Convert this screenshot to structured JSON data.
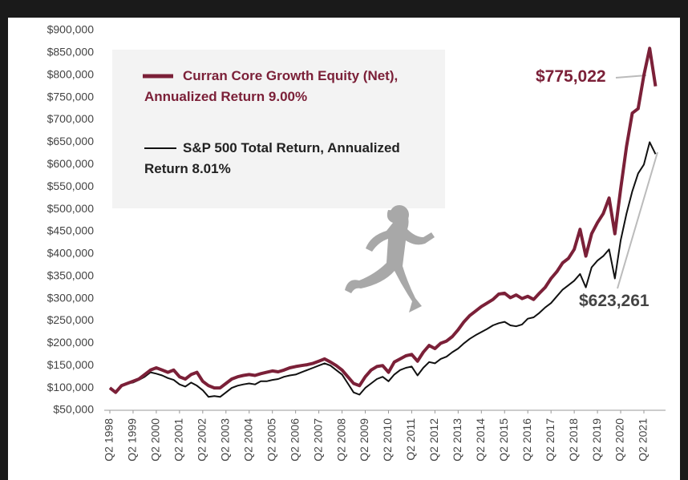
{
  "chart_data": {
    "type": "line",
    "categories": [
      "Q2 1998",
      null,
      null,
      null,
      "Q2 1999",
      null,
      null,
      null,
      "Q2 2000",
      null,
      null,
      null,
      "Q2 2001",
      null,
      null,
      null,
      "Q2 2002",
      null,
      null,
      null,
      "Q2 2003",
      null,
      null,
      null,
      "Q2 2004",
      null,
      null,
      null,
      "Q2 2005",
      null,
      null,
      null,
      "Q2 2006",
      null,
      null,
      null,
      "Q2 2007",
      null,
      null,
      null,
      "Q2 2008",
      null,
      null,
      null,
      "Q2 2009",
      null,
      null,
      null,
      "Q2 2010",
      null,
      null,
      null,
      "Q2 2011",
      null,
      null,
      null,
      "Q2 2012",
      null,
      null,
      null,
      "Q2 2013",
      null,
      null,
      null,
      "Q2 2014",
      null,
      null,
      null,
      "Q2 2015",
      null,
      null,
      null,
      "Q2 2016",
      null,
      null,
      null,
      "Q2 2017",
      null,
      null,
      null,
      "Q2 2018",
      null,
      null,
      null,
      "Q2 2019",
      null,
      null,
      null,
      "Q2 2020",
      null,
      null,
      null,
      "Q2 2021",
      null,
      null
    ],
    "series": [
      {
        "name": "Curran Core Growth Equity (Net), Annualized Return 9.00%",
        "color": "#7b2038",
        "width": 4,
        "values": [
          100000,
          90000,
          105000,
          110000,
          115000,
          120000,
          130000,
          140000,
          145000,
          140000,
          135000,
          140000,
          125000,
          120000,
          130000,
          135000,
          115000,
          105000,
          100000,
          100000,
          110000,
          120000,
          125000,
          128000,
          130000,
          128000,
          132000,
          135000,
          138000,
          136000,
          140000,
          145000,
          148000,
          150000,
          152000,
          155000,
          160000,
          165000,
          158000,
          150000,
          140000,
          125000,
          110000,
          105000,
          125000,
          140000,
          148000,
          150000,
          135000,
          158000,
          165000,
          172000,
          175000,
          160000,
          180000,
          195000,
          188000,
          200000,
          205000,
          215000,
          230000,
          248000,
          262000,
          272000,
          282000,
          290000,
          298000,
          310000,
          312000,
          302000,
          308000,
          300000,
          305000,
          298000,
          312000,
          325000,
          345000,
          360000,
          380000,
          390000,
          410000,
          455000,
          395000,
          445000,
          470000,
          490000,
          525000,
          445000,
          545000,
          640000,
          715000,
          725000,
          800000,
          860000,
          775022
        ]
      },
      {
        "name": "S&P 500 Total Return, Annualized Return 8.01%",
        "color": "#111111",
        "width": 2,
        "values": [
          100000,
          92000,
          105000,
          110000,
          112000,
          118000,
          125000,
          135000,
          132000,
          128000,
          122000,
          118000,
          108000,
          103000,
          112000,
          105000,
          95000,
          80000,
          82000,
          80000,
          90000,
          100000,
          105000,
          108000,
          110000,
          108000,
          115000,
          115000,
          118000,
          120000,
          125000,
          128000,
          130000,
          135000,
          140000,
          145000,
          150000,
          155000,
          150000,
          140000,
          130000,
          110000,
          90000,
          85000,
          100000,
          110000,
          120000,
          125000,
          115000,
          130000,
          140000,
          145000,
          148000,
          128000,
          145000,
          158000,
          155000,
          165000,
          170000,
          180000,
          188000,
          200000,
          210000,
          218000,
          225000,
          232000,
          240000,
          245000,
          248000,
          240000,
          238000,
          242000,
          255000,
          258000,
          268000,
          280000,
          290000,
          305000,
          320000,
          330000,
          340000,
          355000,
          325000,
          370000,
          385000,
          395000,
          410000,
          345000,
          430000,
          490000,
          540000,
          580000,
          600000,
          650000,
          623261
        ]
      }
    ],
    "annotations": [
      "$775,022",
      "$623,261"
    ],
    "ylim": [
      50000,
      900000
    ],
    "yticks": [
      {
        "value": 50000,
        "label": "$50,000"
      },
      {
        "value": 100000,
        "label": "$100,000"
      },
      {
        "value": 150000,
        "label": "$150,000"
      },
      {
        "value": 200000,
        "label": "$200,000"
      },
      {
        "value": 250000,
        "label": "$250,000"
      },
      {
        "value": 300000,
        "label": "$300,000"
      },
      {
        "value": 350000,
        "label": "$350,000"
      },
      {
        "value": 400000,
        "label": "$400,000"
      },
      {
        "value": 450000,
        "label": "$450,000"
      },
      {
        "value": 500000,
        "label": "$500,000"
      },
      {
        "value": 550000,
        "label": "$550,000"
      },
      {
        "value": 600000,
        "label": "$600,000"
      },
      {
        "value": 650000,
        "label": "$650,000"
      },
      {
        "value": 700000,
        "label": "$700,000"
      },
      {
        "value": 750000,
        "label": "$750,000"
      },
      {
        "value": 800000,
        "label": "$800,000"
      },
      {
        "value": 850000,
        "label": "$850,000"
      },
      {
        "value": 900000,
        "label": "$900,000"
      }
    ],
    "grid": false
  }
}
